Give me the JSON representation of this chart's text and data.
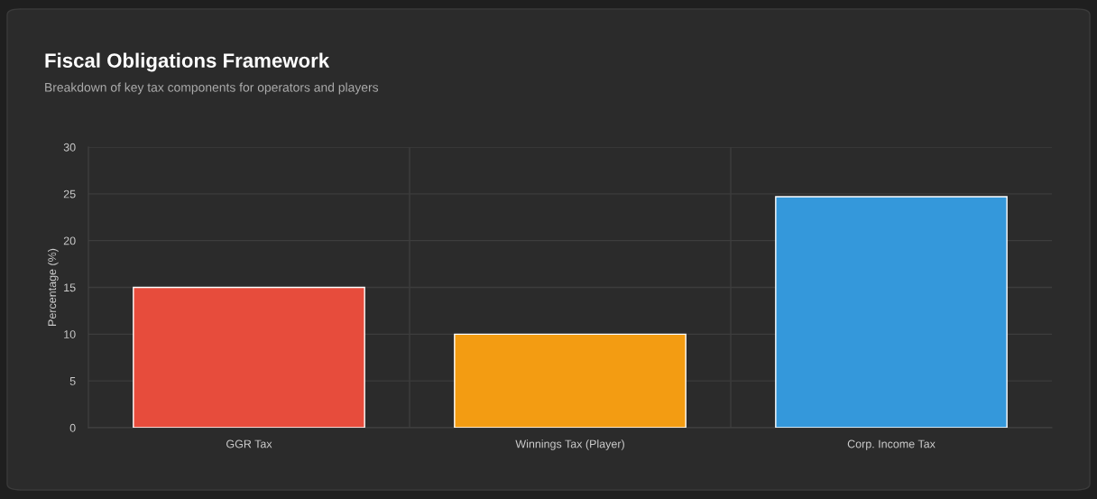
{
  "chart_data": {
    "type": "bar",
    "title": "Fiscal Obligations Framework",
    "subtitle": "Breakdown of key tax components for operators and players",
    "ylabel": "Percentage (%)",
    "categories": [
      "GGR Tax",
      "Winnings Tax (Player)",
      "Corp. Income Tax"
    ],
    "values": [
      15,
      10,
      24.7
    ],
    "colors": [
      "#e74c3c",
      "#f39c12",
      "#3498db"
    ],
    "ylim": [
      0,
      30
    ],
    "yticks": [
      0,
      5,
      10,
      15,
      20,
      25,
      30
    ],
    "grid": true,
    "legend": false
  }
}
